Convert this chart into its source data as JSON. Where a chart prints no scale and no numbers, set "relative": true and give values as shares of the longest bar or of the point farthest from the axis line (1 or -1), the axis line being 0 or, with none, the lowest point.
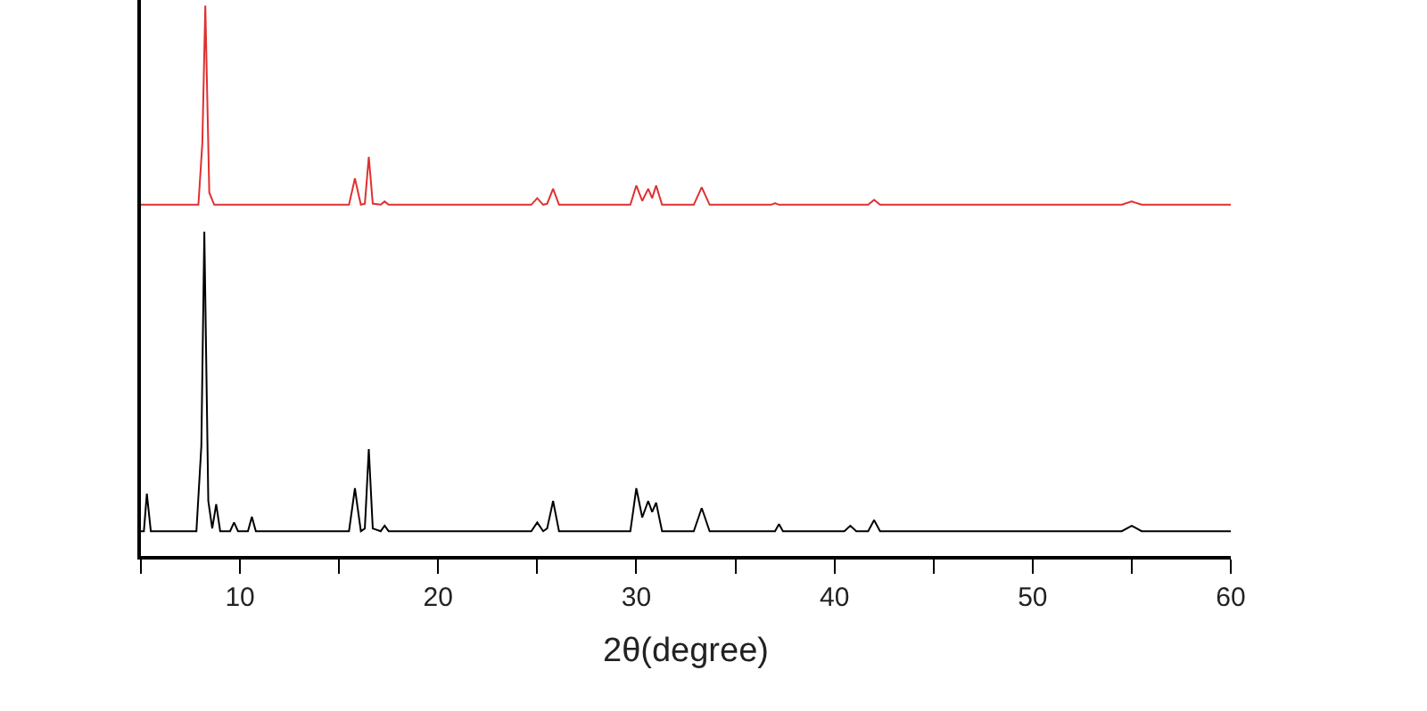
{
  "chart_data": {
    "type": "line",
    "relative": true,
    "xlabel": "2θ(degree)",
    "xlim": [
      5,
      60
    ],
    "xticks": [
      {
        "value": 5,
        "label": null
      },
      10,
      {
        "value": 15,
        "label": null
      },
      20,
      {
        "value": 25,
        "label": null
      },
      30,
      {
        "value": 35,
        "label": null
      },
      40,
      {
        "value": 45,
        "label": null
      },
      50,
      {
        "value": 55,
        "label": null
      },
      60
    ],
    "marker": "none",
    "line_style": "solid",
    "series": [
      {
        "color": "#000000",
        "x": [
          5.0,
          5.15,
          5.3,
          5.5,
          7.8,
          8.05,
          8.2,
          8.4,
          8.6,
          8.8,
          9.0,
          9.5,
          9.7,
          9.9,
          10.4,
          10.6,
          10.8,
          15.5,
          15.8,
          16.1,
          16.3,
          16.5,
          16.7,
          17.1,
          17.3,
          17.5,
          24.7,
          25.0,
          25.3,
          25.5,
          25.8,
          26.1,
          29.7,
          30.0,
          30.3,
          30.6,
          30.8,
          31.0,
          31.3,
          32.9,
          33.3,
          33.7,
          37.0,
          37.2,
          37.4,
          40.5,
          40.8,
          41.1,
          41.7,
          42.0,
          42.3,
          54.5,
          55.0,
          55.5,
          60.0
        ],
        "values": [
          0.045,
          0.045,
          0.113,
          0.045,
          0.045,
          0.2,
          0.589,
          0.1,
          0.05,
          0.094,
          0.045,
          0.045,
          0.061,
          0.045,
          0.045,
          0.071,
          0.045,
          0.045,
          0.123,
          0.045,
          0.05,
          0.194,
          0.05,
          0.045,
          0.055,
          0.045,
          0.045,
          0.061,
          0.045,
          0.05,
          0.1,
          0.045,
          0.045,
          0.123,
          0.07,
          0.1,
          0.08,
          0.097,
          0.045,
          0.045,
          0.087,
          0.045,
          0.045,
          0.058,
          0.045,
          0.045,
          0.055,
          0.045,
          0.045,
          0.065,
          0.045,
          0.045,
          0.055,
          0.045,
          0.045
        ]
      },
      {
        "color": "#e03030",
        "x": [
          5.0,
          7.9,
          8.1,
          8.25,
          8.45,
          8.7,
          15.5,
          15.8,
          16.1,
          16.3,
          16.5,
          16.7,
          17.1,
          17.3,
          17.5,
          24.7,
          25.0,
          25.3,
          25.5,
          25.8,
          26.1,
          29.7,
          30.0,
          30.3,
          30.6,
          30.8,
          31.0,
          31.3,
          32.9,
          33.3,
          33.7,
          36.8,
          37.0,
          37.2,
          41.7,
          42.0,
          42.3,
          54.5,
          55.0,
          55.5,
          60.0
        ],
        "values": [
          0.638,
          0.638,
          0.75,
          1.0,
          0.66,
          0.638,
          0.638,
          0.686,
          0.638,
          0.64,
          0.725,
          0.64,
          0.638,
          0.644,
          0.638,
          0.638,
          0.65,
          0.638,
          0.64,
          0.667,
          0.638,
          0.638,
          0.673,
          0.645,
          0.667,
          0.65,
          0.673,
          0.638,
          0.638,
          0.67,
          0.638,
          0.638,
          0.641,
          0.638,
          0.638,
          0.647,
          0.638,
          0.638,
          0.644,
          0.638,
          0.638
        ]
      }
    ]
  }
}
